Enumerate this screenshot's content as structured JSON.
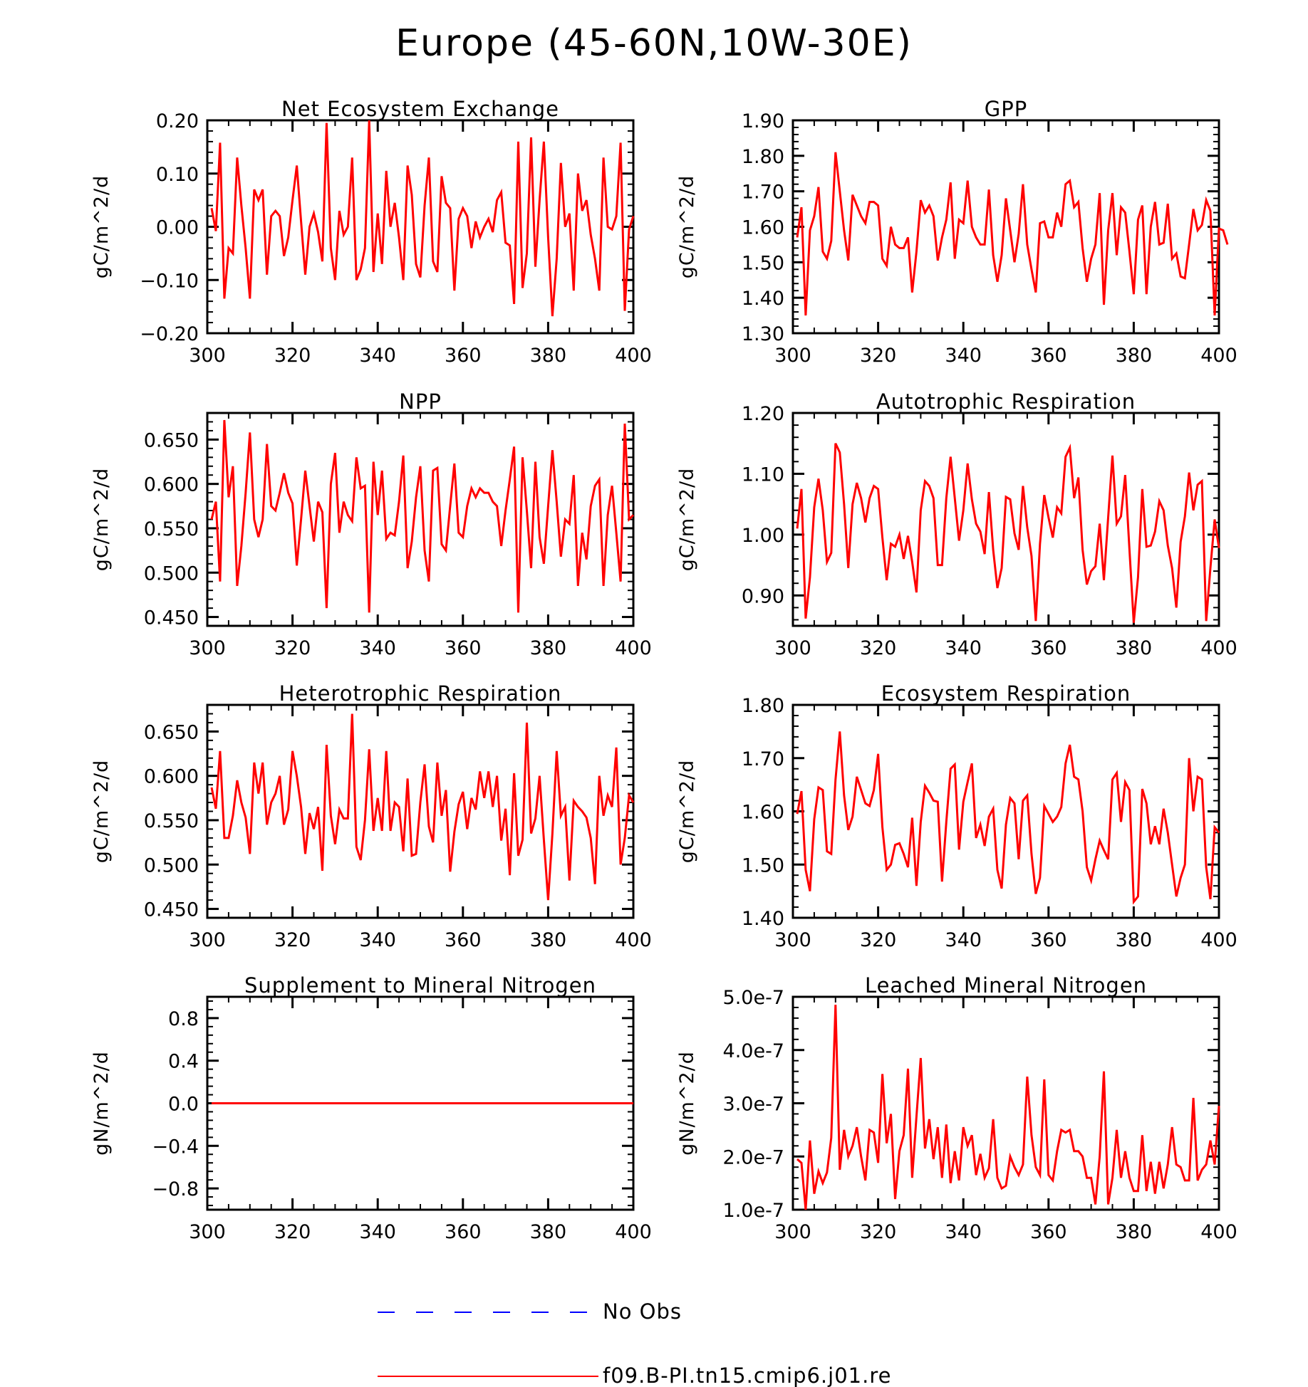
{
  "title": "Europe (45-60N,10W-30E)",
  "colors": {
    "model": "#ff0000",
    "obs": "#0000ff",
    "axis": "#000000"
  },
  "legend": {
    "obs_label": "No Obs",
    "model_label": "f09.B-PI.tn15.cmip6.j01.re"
  },
  "chart_data": [
    {
      "type": "line",
      "title": "Net Ecosystem Exchange",
      "ylabel": "gC/m^2/d",
      "xlim": [
        300,
        400
      ],
      "ylim": [
        -0.2,
        0.2
      ],
      "xticks": [
        300,
        320,
        340,
        360,
        380,
        400
      ],
      "yticks": [
        -0.2,
        -0.1,
        0.0,
        0.1,
        0.2
      ],
      "ytick_labels": [
        "-0.20",
        "-0.10",
        "0.00",
        "0.10",
        "0.20"
      ],
      "x_start": 301,
      "series": [
        {
          "values": [
            0.035,
            -0.008,
            0.158,
            -0.135,
            -0.04,
            -0.05,
            0.13,
            0.04,
            -0.04,
            -0.135,
            0.07,
            0.05,
            0.07,
            -0.09,
            0.02,
            0.03,
            0.02,
            -0.055,
            -0.02,
            0.05,
            0.115,
            0.01,
            -0.09,
            0.0,
            0.025,
            -0.01,
            -0.065,
            0.195,
            -0.04,
            -0.1,
            0.03,
            -0.015,
            0.0,
            0.13,
            -0.1,
            -0.08,
            -0.04,
            0.2,
            -0.085,
            0.025,
            -0.07,
            0.105,
            0.0,
            0.045,
            -0.02,
            -0.1,
            0.115,
            0.06,
            -0.07,
            -0.095,
            0.04,
            0.13,
            -0.065,
            -0.085,
            0.095,
            0.045,
            0.035,
            -0.12,
            0.015,
            0.035,
            0.02,
            -0.04,
            0.01,
            -0.02,
            0.0,
            0.015,
            -0.01,
            0.05,
            0.065,
            -0.03,
            -0.035,
            -0.145,
            0.16,
            -0.115,
            -0.05,
            0.168,
            -0.075,
            0.05,
            0.16,
            -0.02,
            -0.168,
            -0.06,
            0.12,
            0.0,
            0.025,
            -0.12,
            0.1,
            0.03,
            0.05,
            -0.015,
            -0.06,
            -0.12,
            0.13,
            0.0,
            -0.005,
            0.02,
            0.158,
            -0.158,
            -0.005,
            0.02
          ]
        }
      ]
    },
    {
      "type": "line",
      "title": "GPP",
      "ylabel": "gC/m^2/d",
      "xlim": [
        300,
        400
      ],
      "ylim": [
        1.3,
        1.9
      ],
      "xticks": [
        300,
        320,
        340,
        360,
        380,
        400
      ],
      "yticks": [
        1.3,
        1.4,
        1.5,
        1.6,
        1.7,
        1.8,
        1.9
      ],
      "ytick_labels": [
        "1.30",
        "1.40",
        "1.50",
        "1.60",
        "1.70",
        "1.80",
        "1.90"
      ],
      "x_start": 301,
      "series": [
        {
          "values": [
            1.57,
            1.655,
            1.35,
            1.59,
            1.63,
            1.712,
            1.53,
            1.51,
            1.56,
            1.81,
            1.7,
            1.59,
            1.505,
            1.69,
            1.66,
            1.63,
            1.61,
            1.67,
            1.67,
            1.66,
            1.51,
            1.49,
            1.6,
            1.55,
            1.54,
            1.54,
            1.57,
            1.415,
            1.53,
            1.675,
            1.64,
            1.66,
            1.63,
            1.505,
            1.57,
            1.62,
            1.725,
            1.51,
            1.62,
            1.61,
            1.73,
            1.6,
            1.57,
            1.55,
            1.55,
            1.705,
            1.52,
            1.445,
            1.52,
            1.68,
            1.59,
            1.5,
            1.58,
            1.72,
            1.55,
            1.48,
            1.415,
            1.61,
            1.615,
            1.57,
            1.57,
            1.64,
            1.6,
            1.72,
            1.73,
            1.655,
            1.67,
            1.54,
            1.445,
            1.51,
            1.55,
            1.695,
            1.38,
            1.59,
            1.695,
            1.52,
            1.655,
            1.64,
            1.53,
            1.41,
            1.62,
            1.66,
            1.41,
            1.6,
            1.67,
            1.55,
            1.555,
            1.665,
            1.51,
            1.525,
            1.46,
            1.455,
            1.55,
            1.65,
            1.59,
            1.605,
            1.675,
            1.645,
            1.35,
            1.595,
            1.59,
            1.55
          ]
        }
      ]
    },
    {
      "type": "line",
      "title": "NPP",
      "ylabel": "gC/m^2/d",
      "xlim": [
        300,
        400
      ],
      "ylim": [
        0.44,
        0.68
      ],
      "xticks": [
        300,
        320,
        340,
        360,
        380,
        400
      ],
      "yticks": [
        0.45,
        0.5,
        0.55,
        0.6,
        0.65
      ],
      "ytick_labels": [
        "0.450",
        "0.500",
        "0.550",
        "0.600",
        "0.650"
      ],
      "x_start": 301,
      "series": [
        {
          "values": [
            0.56,
            0.58,
            0.49,
            0.672,
            0.585,
            0.62,
            0.485,
            0.53,
            0.59,
            0.658,
            0.56,
            0.54,
            0.56,
            0.645,
            0.575,
            0.57,
            0.59,
            0.612,
            0.59,
            0.578,
            0.508,
            0.56,
            0.615,
            0.575,
            0.535,
            0.58,
            0.568,
            0.46,
            0.6,
            0.635,
            0.545,
            0.58,
            0.565,
            0.558,
            0.63,
            0.595,
            0.598,
            0.455,
            0.625,
            0.565,
            0.615,
            0.538,
            0.545,
            0.542,
            0.58,
            0.632,
            0.505,
            0.535,
            0.585,
            0.62,
            0.525,
            0.49,
            0.615,
            0.618,
            0.532,
            0.525,
            0.575,
            0.623,
            0.545,
            0.54,
            0.575,
            0.595,
            0.585,
            0.595,
            0.59,
            0.59,
            0.58,
            0.575,
            0.53,
            0.57,
            0.605,
            0.642,
            0.455,
            0.63,
            0.57,
            0.505,
            0.625,
            0.54,
            0.51,
            0.575,
            0.638,
            0.58,
            0.518,
            0.56,
            0.555,
            0.61,
            0.485,
            0.545,
            0.515,
            0.575,
            0.598,
            0.605,
            0.485,
            0.565,
            0.598,
            0.545,
            0.49,
            0.668,
            0.56,
            0.565
          ]
        }
      ]
    },
    {
      "type": "line",
      "title": "Autotrophic Respiration",
      "ylabel": "gC/m^2/d",
      "xlim": [
        300,
        400
      ],
      "ylim": [
        0.85,
        1.2
      ],
      "xticks": [
        300,
        320,
        340,
        360,
        380,
        400
      ],
      "yticks": [
        0.9,
        1.0,
        1.1,
        1.2
      ],
      "ytick_labels": [
        "0.90",
        "1.00",
        "1.10",
        "1.20"
      ],
      "x_start": 301,
      "series": [
        {
          "values": [
            1.01,
            1.075,
            0.862,
            0.93,
            1.045,
            1.092,
            1.04,
            0.955,
            0.97,
            1.15,
            1.135,
            1.05,
            0.945,
            1.05,
            1.085,
            1.06,
            1.02,
            1.06,
            1.08,
            1.075,
            0.995,
            0.925,
            0.985,
            0.98,
            1.0,
            0.96,
            0.998,
            0.955,
            0.905,
            1.04,
            1.088,
            1.08,
            1.06,
            0.95,
            0.95,
            1.06,
            1.128,
            1.06,
            0.99,
            1.04,
            1.117,
            1.058,
            1.018,
            1.005,
            0.968,
            1.07,
            0.975,
            0.912,
            0.945,
            1.062,
            1.058,
            1.002,
            0.975,
            1.08,
            1.012,
            0.965,
            0.858,
            0.985,
            1.065,
            1.028,
            0.995,
            1.045,
            1.035,
            1.128,
            1.143,
            1.06,
            1.094,
            0.975,
            0.918,
            0.94,
            0.948,
            1.018,
            0.925,
            1.028,
            1.13,
            1.018,
            1.03,
            1.098,
            0.975,
            0.855,
            0.93,
            1.075,
            0.98,
            0.982,
            1.005,
            1.055,
            1.04,
            0.982,
            0.945,
            0.88,
            0.988,
            1.03,
            1.102,
            1.04,
            1.082,
            1.088,
            0.858,
            0.945,
            1.025,
            0.978
          ]
        }
      ]
    },
    {
      "type": "line",
      "title": "Heterotrophic Respiration",
      "ylabel": "gC/m^2/d",
      "xlim": [
        300,
        400
      ],
      "ylim": [
        0.44,
        0.68
      ],
      "xticks": [
        300,
        320,
        340,
        360,
        380,
        400
      ],
      "yticks": [
        0.45,
        0.5,
        0.55,
        0.6,
        0.65
      ],
      "ytick_labels": [
        "0.450",
        "0.500",
        "0.550",
        "0.600",
        "0.650"
      ],
      "x_start": 301,
      "series": [
        {
          "values": [
            0.587,
            0.563,
            0.628,
            0.53,
            0.53,
            0.555,
            0.595,
            0.57,
            0.553,
            0.512,
            0.615,
            0.58,
            0.615,
            0.545,
            0.57,
            0.58,
            0.6,
            0.545,
            0.562,
            0.628,
            0.6,
            0.565,
            0.512,
            0.558,
            0.54,
            0.565,
            0.493,
            0.635,
            0.555,
            0.523,
            0.562,
            0.552,
            0.552,
            0.67,
            0.52,
            0.505,
            0.55,
            0.63,
            0.538,
            0.575,
            0.538,
            0.628,
            0.538,
            0.57,
            0.565,
            0.515,
            0.597,
            0.51,
            0.512,
            0.57,
            0.613,
            0.543,
            0.525,
            0.615,
            0.555,
            0.584,
            0.492,
            0.537,
            0.568,
            0.582,
            0.54,
            0.575,
            0.562,
            0.605,
            0.575,
            0.605,
            0.565,
            0.6,
            0.527,
            0.563,
            0.488,
            0.603,
            0.51,
            0.528,
            0.66,
            0.535,
            0.552,
            0.6,
            0.528,
            0.46,
            0.535,
            0.628,
            0.555,
            0.565,
            0.482,
            0.572,
            0.565,
            0.56,
            0.553,
            0.53,
            0.478,
            0.6,
            0.555,
            0.578,
            0.565,
            0.632,
            0.5,
            0.53,
            0.578,
            0.57
          ]
        }
      ]
    },
    {
      "type": "line",
      "title": "Ecosystem Respiration",
      "ylabel": "gC/m^2/d",
      "xlim": [
        300,
        400
      ],
      "ylim": [
        1.4,
        1.8
      ],
      "xticks": [
        300,
        320,
        340,
        360,
        380,
        400
      ],
      "yticks": [
        1.4,
        1.5,
        1.6,
        1.7,
        1.8
      ],
      "ytick_labels": [
        "1.40",
        "1.50",
        "1.60",
        "1.70",
        "1.80"
      ],
      "x_start": 301,
      "series": [
        {
          "values": [
            1.595,
            1.638,
            1.49,
            1.45,
            1.585,
            1.645,
            1.64,
            1.525,
            1.52,
            1.66,
            1.75,
            1.63,
            1.565,
            1.59,
            1.665,
            1.64,
            1.615,
            1.61,
            1.64,
            1.708,
            1.57,
            1.49,
            1.5,
            1.537,
            1.54,
            1.52,
            1.495,
            1.588,
            1.46,
            1.58,
            1.648,
            1.635,
            1.62,
            1.618,
            1.468,
            1.58,
            1.68,
            1.688,
            1.528,
            1.618,
            1.655,
            1.69,
            1.55,
            1.575,
            1.535,
            1.59,
            1.605,
            1.49,
            1.455,
            1.575,
            1.625,
            1.615,
            1.51,
            1.62,
            1.63,
            1.52,
            1.445,
            1.475,
            1.61,
            1.595,
            1.58,
            1.59,
            1.608,
            1.69,
            1.725,
            1.665,
            1.66,
            1.6,
            1.495,
            1.47,
            1.51,
            1.545,
            1.527,
            1.51,
            1.66,
            1.672,
            1.58,
            1.655,
            1.64,
            1.43,
            1.44,
            1.642,
            1.615,
            1.538,
            1.572,
            1.538,
            1.605,
            1.56,
            1.5,
            1.44,
            1.475,
            1.5,
            1.7,
            1.6,
            1.665,
            1.66,
            1.495,
            1.435,
            1.57,
            1.56
          ]
        }
      ]
    },
    {
      "type": "line",
      "title": "Supplement to Mineral Nitrogen",
      "ylabel": "gN/m^2/d",
      "xlim": [
        300,
        400
      ],
      "ylim": [
        -1.0,
        1.0
      ],
      "xticks": [
        300,
        320,
        340,
        360,
        380,
        400
      ],
      "yticks": [
        -0.8,
        -0.4,
        0.0,
        0.4,
        0.8
      ],
      "ytick_labels": [
        "-0.8",
        "-0.4",
        "0.0",
        "0.4",
        "0.8"
      ],
      "x_start": 301,
      "series": [
        {
          "values": [
            0,
            0,
            0,
            0,
            0,
            0,
            0,
            0,
            0,
            0,
            0,
            0,
            0,
            0,
            0,
            0,
            0,
            0,
            0,
            0,
            0,
            0,
            0,
            0,
            0,
            0,
            0,
            0,
            0,
            0,
            0,
            0,
            0,
            0,
            0,
            0,
            0,
            0,
            0,
            0,
            0,
            0,
            0,
            0,
            0,
            0,
            0,
            0,
            0,
            0,
            0,
            0,
            0,
            0,
            0,
            0,
            0,
            0,
            0,
            0,
            0,
            0,
            0,
            0,
            0,
            0,
            0,
            0,
            0,
            0,
            0,
            0,
            0,
            0,
            0,
            0,
            0,
            0,
            0,
            0,
            0,
            0,
            0,
            0,
            0,
            0,
            0,
            0,
            0,
            0,
            0,
            0,
            0,
            0,
            0,
            0,
            0,
            0,
            0,
            0
          ]
        }
      ]
    },
    {
      "type": "line",
      "title": "Leached Mineral Nitrogen",
      "ylabel": "gN/m^2/d",
      "xlim": [
        300,
        400
      ],
      "ylim": [
        1e-07,
        5e-07
      ],
      "xticks": [
        300,
        320,
        340,
        360,
        380,
        400
      ],
      "yticks": [
        1e-07,
        2e-07,
        3e-07,
        4e-07,
        5e-07
      ],
      "ytick_labels": [
        "1.0e-7",
        "2.0e-7",
        "3.0e-7",
        "4.0e-7",
        "5.0e-7"
      ],
      "x_start": 301,
      "series": [
        {
          "values": [
            1.95e-07,
            1.88e-07,
            1e-07,
            2.3e-07,
            1.3e-07,
            1.72e-07,
            1.5e-07,
            1.7e-07,
            2.35e-07,
            4.85e-07,
            1.75e-07,
            2.5e-07,
            2e-07,
            2.2e-07,
            2.55e-07,
            2e-07,
            1.55e-07,
            2.5e-07,
            2.45e-07,
            1.88e-07,
            3.55e-07,
            2.25e-07,
            2.8e-07,
            1.2e-07,
            2.1e-07,
            2.4e-07,
            3.65e-07,
            1.6e-07,
            2.75e-07,
            3.85e-07,
            2.15e-07,
            2.7e-07,
            1.95e-07,
            2.55e-07,
            1.6e-07,
            2.6e-07,
            1.5e-07,
            2.1e-07,
            1.55e-07,
            2.55e-07,
            2.2e-07,
            2.4e-07,
            1.65e-07,
            2.05e-07,
            1.6e-07,
            1.78e-07,
            2.7e-07,
            1.6e-07,
            1.4e-07,
            1.45e-07,
            2e-07,
            1.8e-07,
            1.65e-07,
            1.85e-07,
            3.5e-07,
            2.4e-07,
            1.8e-07,
            1.65e-07,
            3.45e-07,
            1.65e-07,
            1.55e-07,
            2.1e-07,
            2.5e-07,
            2.45e-07,
            2.5e-07,
            2.1e-07,
            2.1e-07,
            2e-07,
            1.6e-07,
            1.6e-07,
            1.1e-07,
            2e-07,
            3.6e-07,
            1.1e-07,
            1.6e-07,
            2.5e-07,
            1.6e-07,
            2.1e-07,
            1.6e-07,
            1.35e-07,
            1.35e-07,
            2.4e-07,
            1.35e-07,
            1.9e-07,
            1.3e-07,
            1.9e-07,
            1.4e-07,
            1.85e-07,
            2.55e-07,
            1.85e-07,
            1.8e-07,
            1.55e-07,
            1.55e-07,
            3.1e-07,
            1.55e-07,
            1.75e-07,
            1.85e-07,
            2.3e-07,
            1.85e-07,
            2.95e-07
          ]
        }
      ]
    }
  ]
}
